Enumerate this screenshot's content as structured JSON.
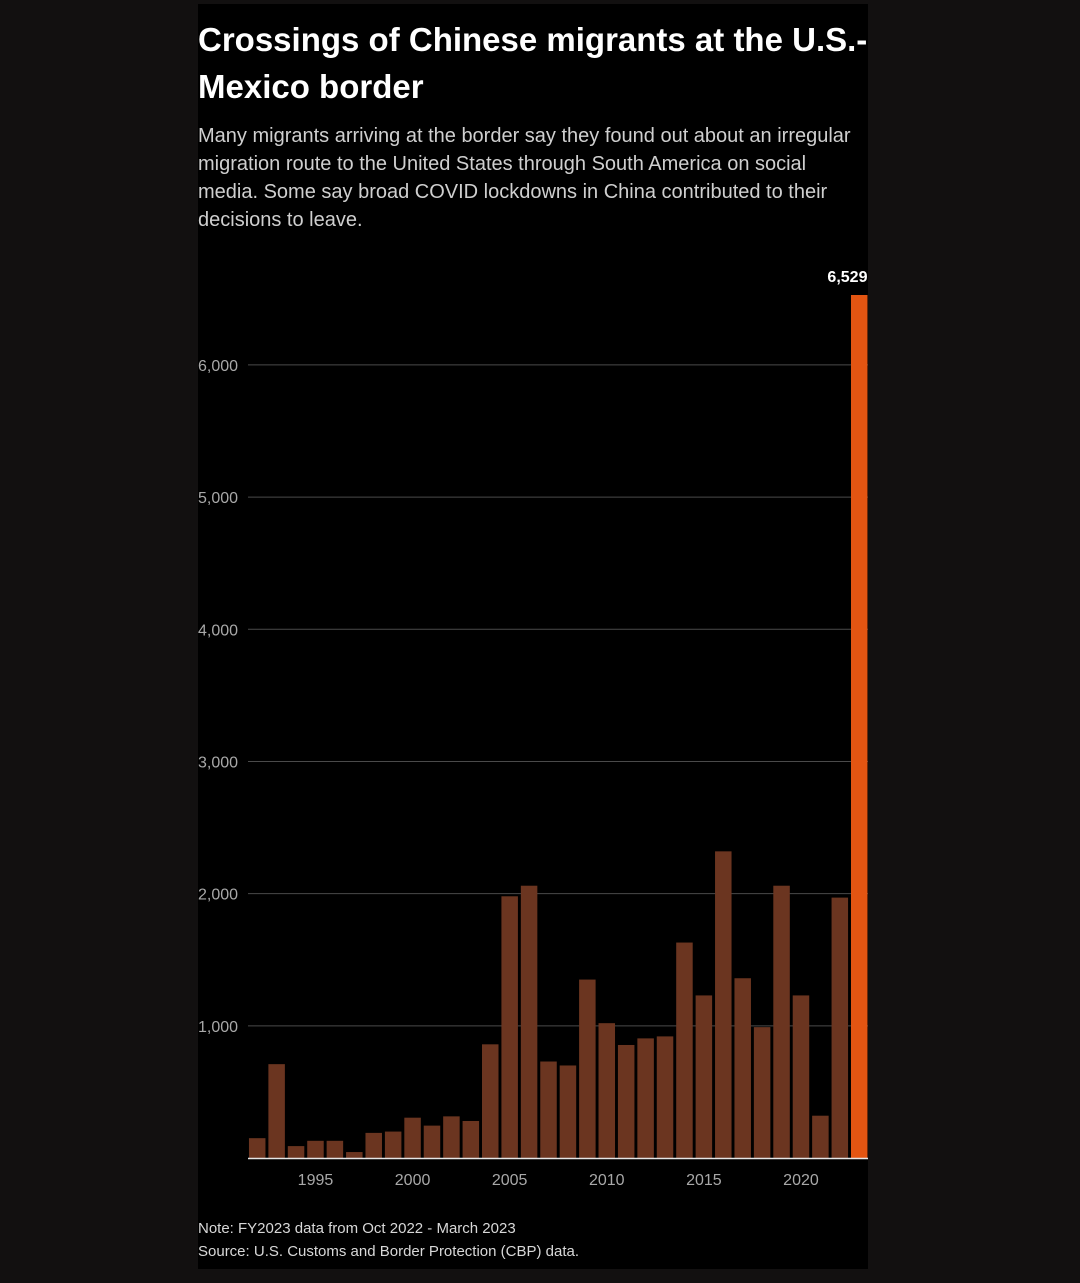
{
  "colors": {
    "page_background": "#121010",
    "panel_background": "#000000",
    "bar": "#6b3520",
    "highlight_bar": "#e35512",
    "gridline": "#4a4a4a",
    "axis_text": "#a8a8a8"
  },
  "header": {
    "title": "Crossings of Chinese migrants at the U.S.-Mexico border",
    "subtitle": "Many migrants arriving at the border say they found out about an irregular migration route to the United States through South America on social media. Some say broad COVID lockdowns in China contributed to their decisions to leave."
  },
  "footer": {
    "note": "Note: FY2023 data from Oct 2022 - March 2023",
    "source": "Source: U.S. Customs and Border Protection (CBP) data."
  },
  "chart_data": {
    "type": "bar",
    "categories": [
      1992,
      1993,
      1994,
      1995,
      1996,
      1997,
      1998,
      1999,
      2000,
      2001,
      2002,
      2003,
      2004,
      2005,
      2006,
      2007,
      2008,
      2009,
      2010,
      2011,
      2012,
      2013,
      2014,
      2015,
      2016,
      2017,
      2018,
      2019,
      2020,
      2021,
      2022,
      2023
    ],
    "values": [
      150,
      710,
      90,
      130,
      130,
      45,
      190,
      200,
      305,
      245,
      315,
      280,
      860,
      1980,
      2060,
      730,
      700,
      1350,
      1020,
      855,
      905,
      920,
      1630,
      1230,
      2320,
      1360,
      990,
      2060,
      1230,
      320,
      1970,
      6529
    ],
    "x_tick_labels": [
      "1995",
      "2000",
      "2005",
      "2010",
      "2015",
      "2020"
    ],
    "y_ticks": [
      1000,
      2000,
      3000,
      4000,
      5000,
      6000
    ],
    "y_tick_labels": [
      "1,000",
      "2,000",
      "3,000",
      "4,000",
      "5,000",
      "6,000"
    ],
    "ylim": [
      0,
      6529
    ],
    "highlight": {
      "category": 2023,
      "label": "6,529"
    },
    "grid": true
  }
}
